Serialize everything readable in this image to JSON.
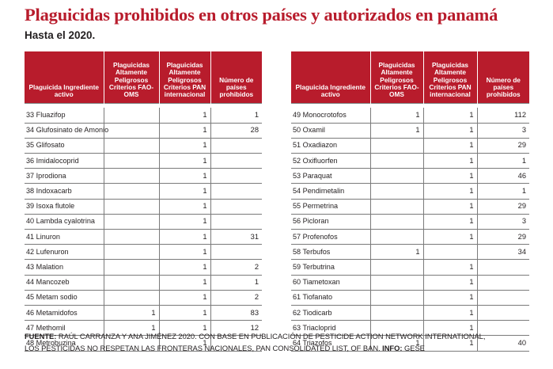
{
  "title": "Plaguicidas prohibidos en otros países y autorizados en panamá",
  "subtitle": "Hasta el 2020.",
  "headers": {
    "name": "Plaguicida Ingrediente activo",
    "fao": "Plaguicidas Altamente Peligrosos Criterios FAO-OMS",
    "pan": "Plaguicidas Altamente Peligrosos Criterios PAN internacional",
    "countries": "Número de países prohibidos"
  },
  "left_rows": [
    {
      "name": "33 Fluazifop",
      "fao": "",
      "pan": "1",
      "countries": "1"
    },
    {
      "name": "34 Glufosinato de Amonio",
      "fao": "",
      "pan": "1",
      "countries": "28"
    },
    {
      "name": "35 Glifosato",
      "fao": "",
      "pan": "1",
      "countries": ""
    },
    {
      "name": "36 Imidalocoprid",
      "fao": "",
      "pan": "1",
      "countries": ""
    },
    {
      "name": "37 Iprodiona",
      "fao": "",
      "pan": "1",
      "countries": ""
    },
    {
      "name": "38 Indoxacarb",
      "fao": "",
      "pan": "1",
      "countries": ""
    },
    {
      "name": "39 Isoxa flutole",
      "fao": "",
      "pan": "1",
      "countries": ""
    },
    {
      "name": "40 Lambda cyalotrina",
      "fao": "",
      "pan": "1",
      "countries": ""
    },
    {
      "name": "41 Linuron",
      "fao": "",
      "pan": "1",
      "countries": "31"
    },
    {
      "name": "42 Lufenuron",
      "fao": "",
      "pan": "1",
      "countries": ""
    },
    {
      "name": "43 Malation",
      "fao": "",
      "pan": "1",
      "countries": "2"
    },
    {
      "name": "44 Mancozeb",
      "fao": "",
      "pan": "1",
      "countries": "1"
    },
    {
      "name": "45 Metam sodio",
      "fao": "",
      "pan": "1",
      "countries": "2"
    },
    {
      "name": "46 Metamidofos",
      "fao": "1",
      "pan": "1",
      "countries": "83"
    },
    {
      "name": "47 Methomil",
      "fao": "1",
      "pan": "1",
      "countries": "12"
    },
    {
      "name": "48 Metrobuzina",
      "fao": "",
      "pan": "1",
      "countries": ""
    }
  ],
  "right_rows": [
    {
      "name": "49 Monocrotofos",
      "fao": "1",
      "pan": "1",
      "countries": "112"
    },
    {
      "name": "50 Oxamil",
      "fao": "1",
      "pan": "1",
      "countries": "3"
    },
    {
      "name": "51 Oxadiazon",
      "fao": "",
      "pan": "1",
      "countries": "29"
    },
    {
      "name": "52 Oxifluorfen",
      "fao": "",
      "pan": "1",
      "countries": "1"
    },
    {
      "name": "53 Paraquat",
      "fao": "",
      "pan": "1",
      "countries": "46"
    },
    {
      "name": "54 Pendimetalin",
      "fao": "",
      "pan": "1",
      "countries": "1"
    },
    {
      "name": "55 Permetrina",
      "fao": "",
      "pan": "1",
      "countries": "29"
    },
    {
      "name": "56 Picloran",
      "fao": "",
      "pan": "1",
      "countries": "3"
    },
    {
      "name": "57 Profenofos",
      "fao": "",
      "pan": "1",
      "countries": "29"
    },
    {
      "name": "58 Terbufos",
      "fao": "1",
      "pan": "",
      "countries": "34"
    },
    {
      "name": "59 Terbutrina",
      "fao": "",
      "pan": "1",
      "countries": ""
    },
    {
      "name": "60 Tiametoxan",
      "fao": "",
      "pan": "1",
      "countries": ""
    },
    {
      "name": "61 Tiofanato",
      "fao": "",
      "pan": "1",
      "countries": ""
    },
    {
      "name": "62 Tiodicarb",
      "fao": "",
      "pan": "1",
      "countries": ""
    },
    {
      "name": "63 Triacloprid",
      "fao": "",
      "pan": "1",
      "countries": ""
    },
    {
      "name": "64 Triazofos",
      "fao": "1",
      "pan": "1",
      "countries": "40"
    }
  ],
  "footer": {
    "source_label": "FUENTE:",
    "source_line1": "RAÚL CARRANZA Y ANA JIMÉNEZ 2020. CON BASE EN PUBLICACIÓN DE PESTICIDE ACTION NETWORK INTERNATIONAL,",
    "source_line2": "LOS PESTICIDAS NO RESPETAN LAS FRONTERAS NACIONALES, PAN CONSOLIDATED LIST, OF BAN.",
    "info_label": "INFO:",
    "info_value": "GESE"
  },
  "colors": {
    "accent": "#b81c2c",
    "text": "#231f20",
    "rule": "#7a7a7a"
  }
}
